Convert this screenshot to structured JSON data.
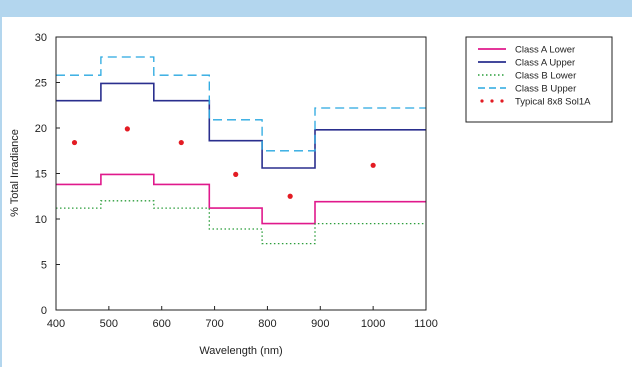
{
  "chart_data": {
    "type": "line",
    "xlabel": "Wavelength (nm)",
    "ylabel": "% Total Irradiance",
    "xlim": [
      400,
      1100
    ],
    "ylim": [
      0,
      30
    ],
    "x_ticks": [
      "400",
      "500",
      "600",
      "700",
      "800",
      "900",
      "1000",
      "1100"
    ],
    "y_ticks": [
      "0",
      "5",
      "10",
      "15",
      "20",
      "25",
      "30"
    ],
    "legend_position": "right",
    "grid": false,
    "steps": [
      400,
      485,
      585,
      690,
      790,
      890,
      1100
    ],
    "series": [
      {
        "name": "Class A Lower",
        "style": "solid",
        "color": "#e0198c",
        "values": [
          13.8,
          14.9,
          13.8,
          11.2,
          9.5,
          11.9
        ]
      },
      {
        "name": "Class A Upper",
        "style": "solid",
        "color": "#2a2f8e",
        "values": [
          23.0,
          24.9,
          23.0,
          18.6,
          15.6,
          19.8
        ]
      },
      {
        "name": "Class B Lower",
        "style": "dotted",
        "color": "#2a9d3a",
        "values": [
          11.2,
          12.0,
          11.2,
          8.9,
          7.3,
          9.5
        ]
      },
      {
        "name": "Class B Upper",
        "style": "dashed",
        "color": "#29a8e0",
        "values": [
          25.8,
          27.8,
          25.8,
          20.9,
          17.5,
          22.2
        ]
      },
      {
        "name": "Typical 8x8 Sol1A",
        "style": "points",
        "color": "#e31b23",
        "x": [
          435,
          535,
          637,
          740,
          843,
          1000
        ],
        "values": [
          18.4,
          19.9,
          18.4,
          14.9,
          12.5,
          15.9
        ]
      }
    ]
  }
}
